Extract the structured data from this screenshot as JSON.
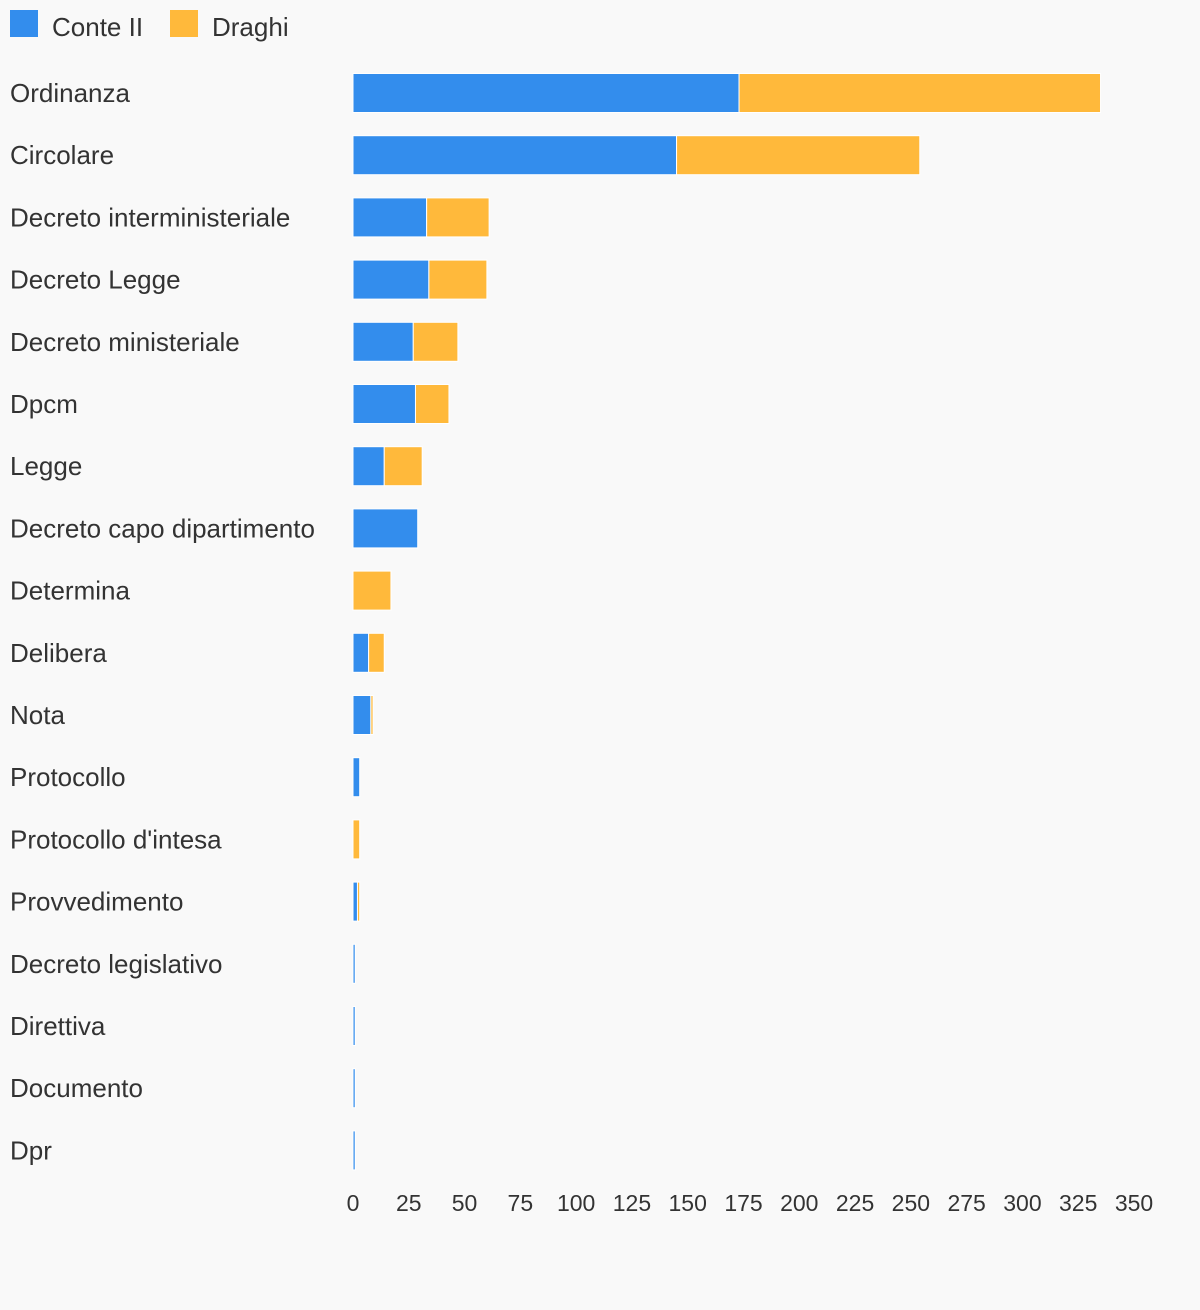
{
  "chart_data": {
    "type": "bar",
    "orientation": "horizontal",
    "stacked": true,
    "categories": [
      "Ordinanza",
      "Circolare",
      "Decreto interministeriale",
      "Decreto Legge",
      "Decreto ministeriale",
      "Dpcm",
      "Legge",
      "Decreto capo dipartimento",
      "Determina",
      "Delibera",
      "Nota",
      "Protocollo",
      "Protocollo d'intesa",
      "Provvedimento",
      "Decreto legislativo",
      "Direttiva",
      "Documento",
      "Dpr"
    ],
    "series": [
      {
        "name": "Conte II",
        "color": "#338ded",
        "values": [
          173,
          145,
          33,
          34,
          27,
          28,
          14,
          29,
          0,
          7,
          8,
          3,
          0,
          2,
          1,
          1,
          1,
          1
        ]
      },
      {
        "name": "Draghi",
        "color": "#ffb93b",
        "values": [
          162,
          109,
          28,
          26,
          20,
          15,
          17,
          0,
          17,
          7,
          1,
          0,
          3,
          1,
          0,
          0,
          0,
          0
        ]
      }
    ],
    "xlim": [
      0,
      350
    ],
    "xticks": [
      "0",
      "25",
      "50",
      "75",
      "100",
      "125",
      "150",
      "175",
      "200",
      "225",
      "250",
      "275",
      "300",
      "325",
      "350"
    ],
    "legend_position": "top-left",
    "grid": false,
    "title": "",
    "xlabel": "",
    "ylabel": ""
  }
}
